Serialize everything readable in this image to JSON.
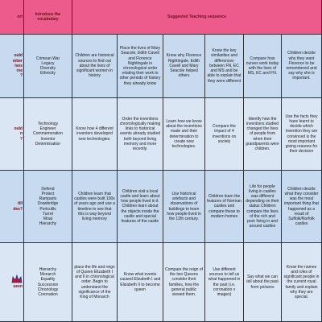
{
  "header": {
    "first": "ort",
    "vocabulary": "Introduce the vocabulary",
    "sequence": "Suggested Teaching sequence"
  },
  "rows": [
    {
      "question": [
        "ould",
        "mber",
        "ives",
        "rve",
        "?"
      ],
      "vocabulary": [
        "Crimean War",
        "Legacy",
        "Diversity",
        "Ethnicity"
      ],
      "cells": [
        "Children are historical sources to find out about the lives of significant women in history",
        "Place the lives of Mary Seacole, Edith Cavell and Florence Nightingale in chronological order relating their work to other periods of history they already know",
        "Know why Florence Nightingale, Edith Cavell and Mary Seacole helped others",
        "Know the key similarities and differences between FN, EC and MS and be able to explain that they were different",
        "Compare how nurses work today with the lives of MS, EC and FN.",
        "Children decide why they want Florence to be remembered and say why she is important."
      ]
    },
    {
      "question": [
        "ould",
        "n",
        "?"
      ],
      "vocabulary": [
        "Technology",
        "Engineer",
        "Commemoration",
        "Inventor",
        "Determination"
      ],
      "cells": [
        "Know how 4 different inventors developed new technologies.",
        "Order the inventions chronologically making links to historical events already studied both beyond living memory and more recently.",
        "Learn how we know about the inventions made and their determination to create new technologies.",
        "Compare the impact of 4 inventions on society",
        "Identify how the inventions studied changed the lives of people from when their grandparents were children.",
        "Use the facts they have learnt to decide which invention they are convinced is the most important giving reasons for their decision"
      ]
    },
    {
      "question": [
        "till",
        "des?"
      ],
      "vocabulary": [
        "Defend",
        "Protect",
        "Ramparts",
        "Drawbridge",
        "Portcullis",
        "Turret",
        "Moat",
        "Hierarchy"
      ],
      "cells": [
        "Children learn that castles were built 100s of years ago and use a timeline to see that this is way beyond living memory",
        "Children visit a local castle and learn about how people lived in it. Children learn about the objects inside the castle and special features of the castle",
        "Use historical artefacts and observations of buildings to learn how people lived in the 12th century.",
        "Children learn the features of Norman castles and compare these to modern homes",
        "Life for people living in castles was different depending on their status Children compare the lives of the rich and poor living in and around castles",
        "Children decide what they consider was the most important thing that happened as a result of Suffolk/Norfolk castles"
      ]
    },
    {
      "question": [
        "ueen"
      ],
      "vocabulary": [
        "Hierarchy",
        "Monarch",
        "Equality",
        "Succession",
        "Chronology",
        "Coronation"
      ],
      "cells": [
        "place the life and reign of Queen Elizabeth I and II in chronological order. Begin to understand the significance of the King of Monarch",
        "Know what events caused Elizabeth I and Elizabeth II to become queen",
        "Compare the reign of the two Queens consider their families, how the general public viewed them.",
        "Use different sources to tell us what happened in the past (i.e. coronation v images)",
        "Say what we can tell about the past from pictures",
        "Know the names and roles of significant people in the current royal family and explain why they are special."
      ]
    }
  ]
}
